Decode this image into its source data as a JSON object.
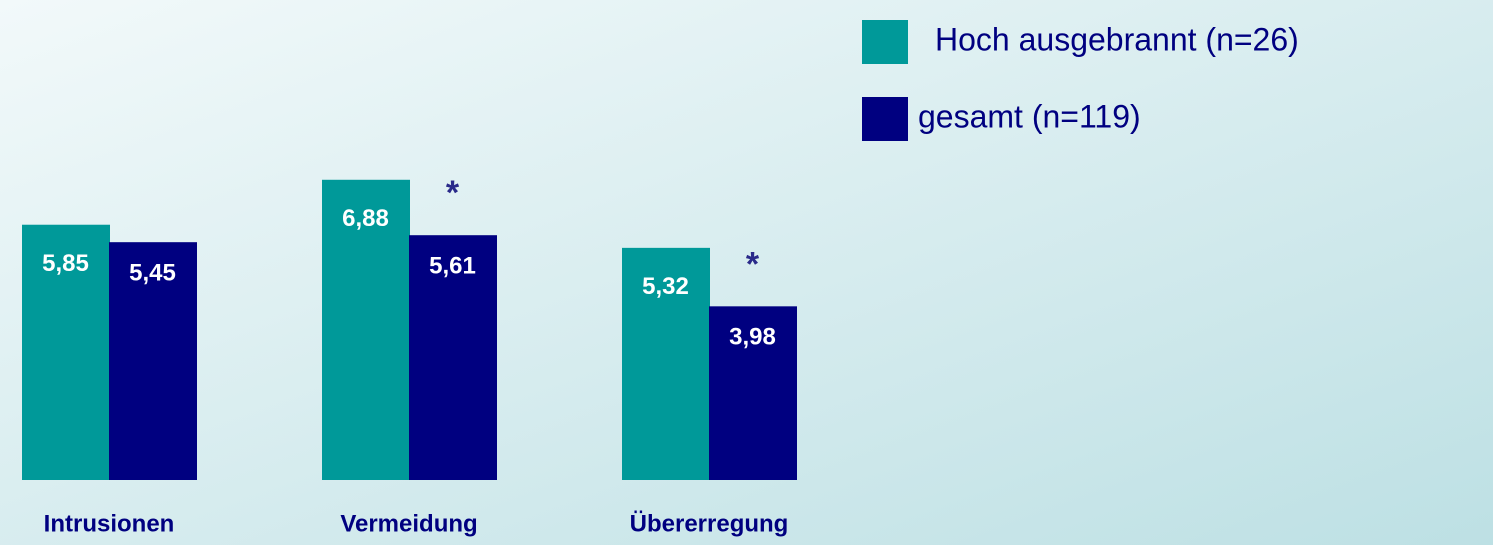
{
  "chart_data": {
    "type": "bar",
    "categories": [
      "Intrusionen",
      "Vermeidung",
      "Übererregung"
    ],
    "ylim": [
      0,
      11
    ],
    "series": [
      {
        "name": "Hoch ausgebrannt (n=26)",
        "color": "#009999",
        "values": [
          5.85,
          6.88,
          5.32
        ],
        "value_labels": [
          "5,85",
          "6,88",
          "5,32"
        ]
      },
      {
        "name": "gesamt (n=119)",
        "color": "#000080",
        "values": [
          5.45,
          5.61,
          3.98
        ],
        "value_labels": [
          "5,45",
          "5,61",
          "3,98"
        ],
        "markers": [
          null,
          "*",
          "*"
        ]
      }
    ]
  }
}
